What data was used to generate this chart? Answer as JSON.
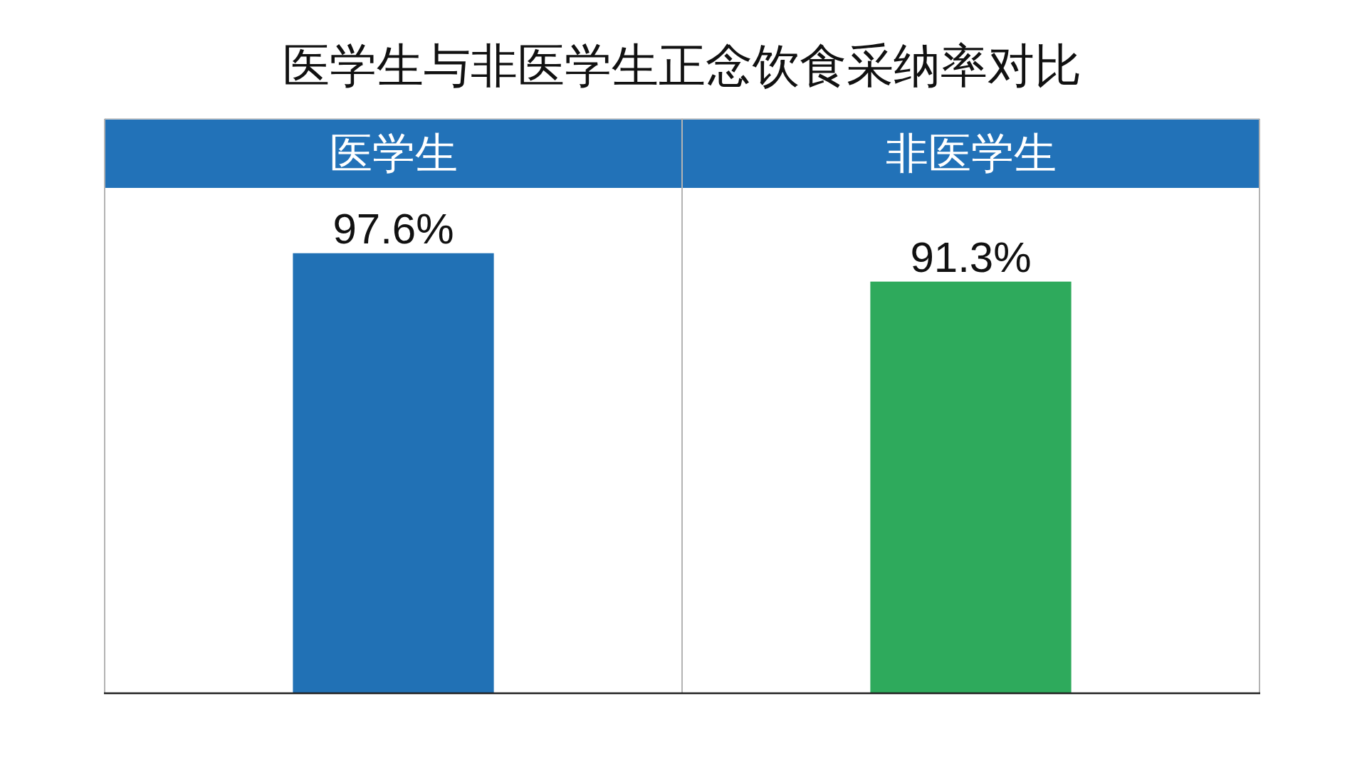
{
  "chart_data": {
    "type": "bar",
    "title": "医学生与非医学生正念饮食采纳率对比",
    "categories": [
      "医学生",
      "非医学生"
    ],
    "values": [
      97.6,
      91.3
    ],
    "colors": [
      "#2171b5",
      "#2eaa5c"
    ],
    "value_labels": [
      "97.6%",
      "91.3%"
    ]
  }
}
